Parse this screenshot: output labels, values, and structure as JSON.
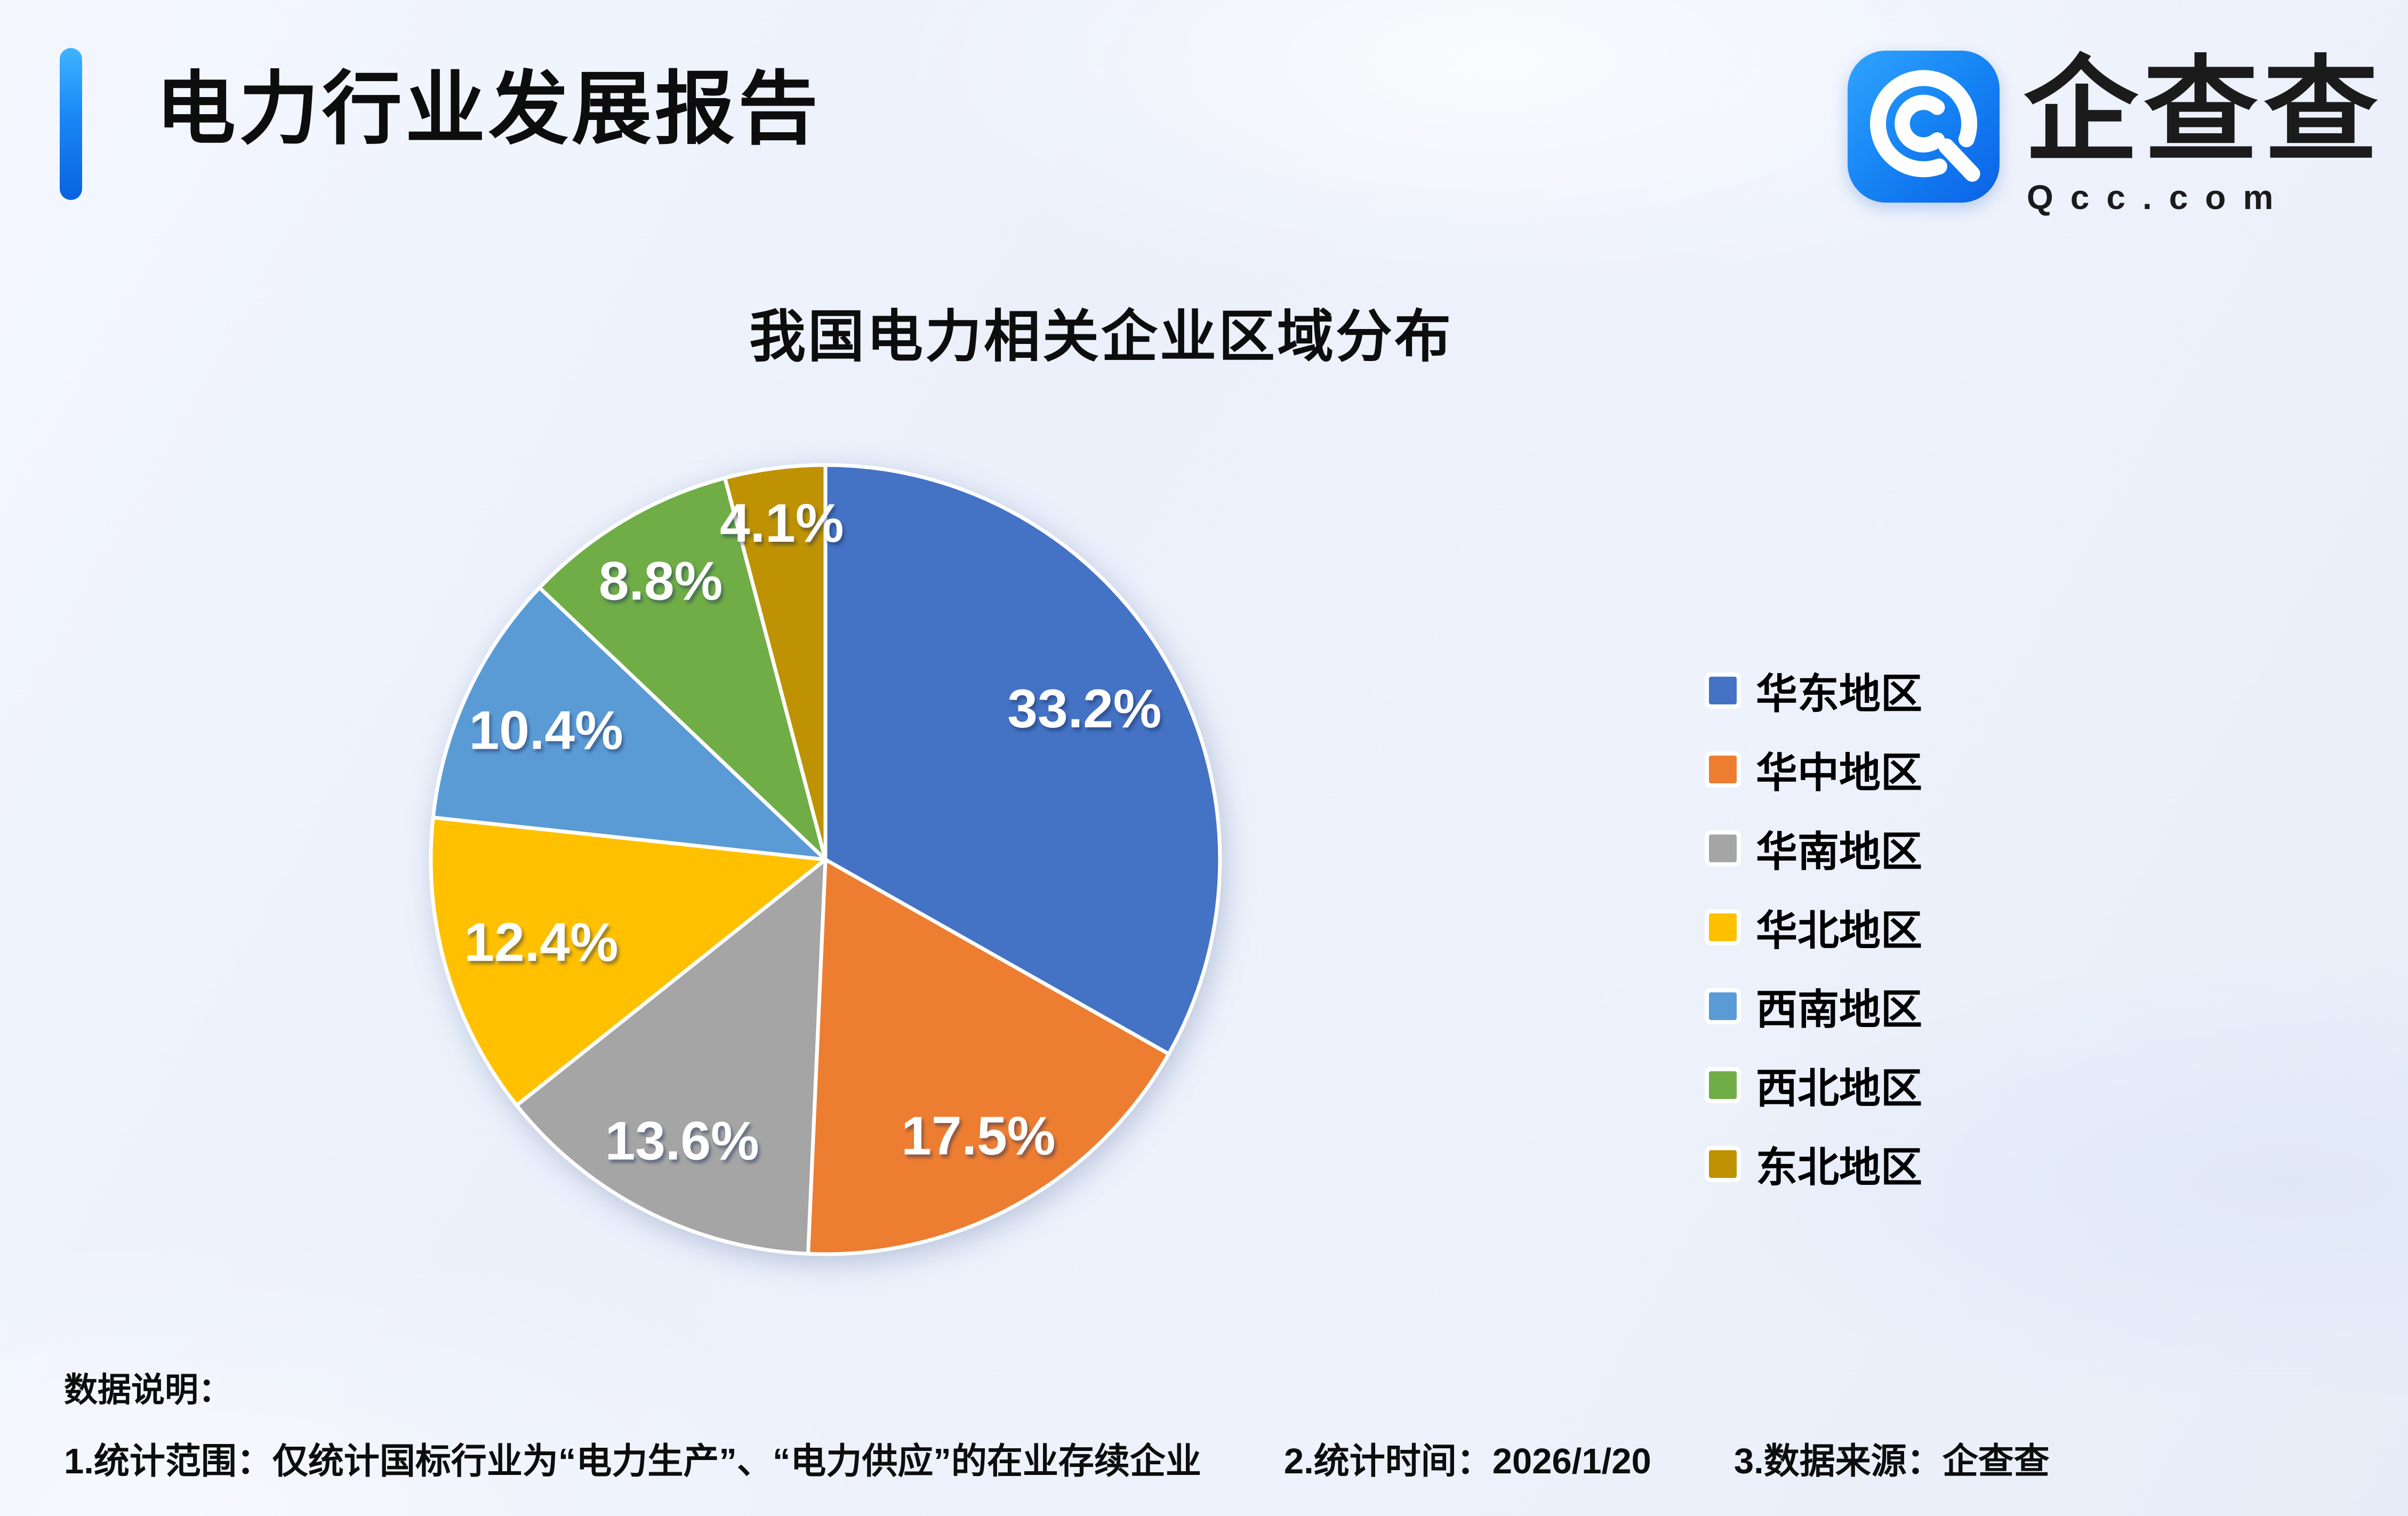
{
  "header": {
    "title": "电力行业发展报告",
    "accent_color_top": "#3FB4FF",
    "accent_color_bottom": "#0862E0"
  },
  "logo": {
    "brand": "企查查",
    "domain": "Qcc.com",
    "icon": "qcc-logo-icon",
    "brand_color": "#1677FF"
  },
  "chart_data": {
    "type": "pie",
    "title": "我国电力相关企业区域分布",
    "start_angle_deg": 0,
    "direction": "clockwise",
    "legend_position": "right",
    "label_format": "percent_one_decimal",
    "label_color": "#FFFFFF",
    "series": [
      {
        "name": "华东地区",
        "value": 33.2,
        "color": "#4472C4",
        "label_radius": 0.76
      },
      {
        "name": "华中地区",
        "value": 17.5,
        "color": "#ED7D31",
        "label_radius": 0.8
      },
      {
        "name": "华南地区",
        "value": 13.6,
        "color": "#A5A5A5",
        "label_radius": 0.8
      },
      {
        "name": "华北地区",
        "value": 12.4,
        "color": "#FFC000",
        "label_radius": 0.75
      },
      {
        "name": "西南地区",
        "value": 10.4,
        "color": "#5B9BD5",
        "label_radius": 0.78
      },
      {
        "name": "西北地区",
        "value": 8.8,
        "color": "#70AD47",
        "label_radius": 0.82
      },
      {
        "name": "东北地区",
        "value": 4.1,
        "color": "#BF9203",
        "label_radius": 0.86
      }
    ]
  },
  "notes": {
    "heading": "数据说明：",
    "items": [
      "1.统计范围：仅统计国标行业为“电力生产”、“电力供应”的在业存续企业",
      "2.统计时间：2026/1/20",
      "3.数据来源：企查查"
    ]
  }
}
